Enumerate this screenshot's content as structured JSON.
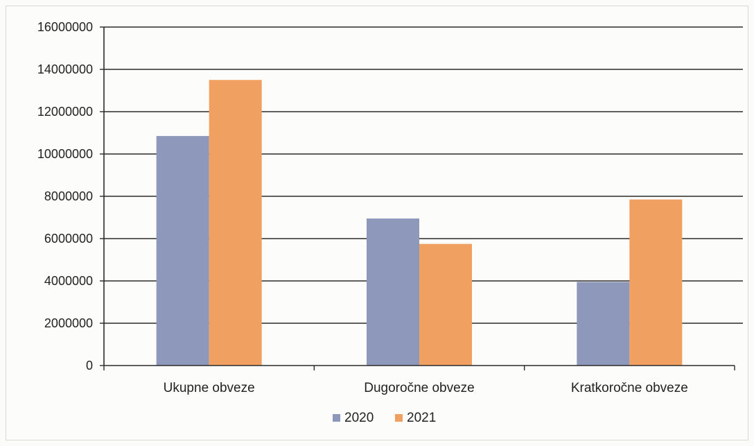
{
  "chart_data": {
    "type": "bar",
    "categories": [
      "Ukupne obveze",
      "Dugoročne obveze",
      "Kratkoročne obveze"
    ],
    "series": [
      {
        "name": "2020",
        "values": [
          10850000,
          6950000,
          3950000
        ],
        "color": "#8e98ba"
      },
      {
        "name": "2021",
        "values": [
          13500000,
          5750000,
          7850000
        ],
        "color": "#f0a060"
      }
    ],
    "yticks": [
      "0",
      "2000000",
      "4000000",
      "6000000",
      "8000000",
      "10000000",
      "12000000",
      "14000000",
      "16000000"
    ],
    "ylim": [
      0,
      16000000
    ],
    "grid": true,
    "legend_position": "bottom"
  }
}
